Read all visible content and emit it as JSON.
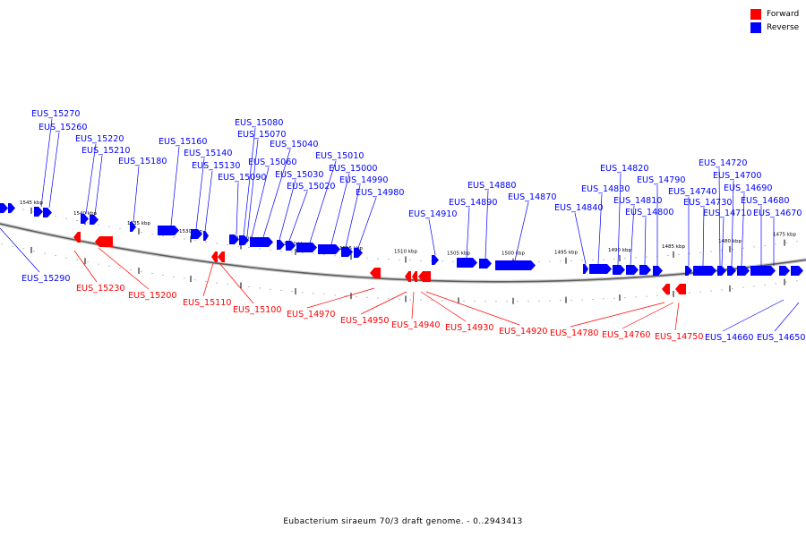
{
  "legend": {
    "forward_label": "Forward",
    "reverse_label": "Reverse",
    "forward_color": "#ff0000",
    "reverse_color": "#0000ff"
  },
  "caption": "Eubacterium siraeum 70/3 draft genome. - 0..2943413",
  "ticks": [
    "1545 kbp",
    "1540 kbp",
    "1535 kbp",
    "1530 kbp",
    "1525 kbp",
    "1520 kbp",
    "1515 kbp",
    "1510 kbp",
    "1505 kbp",
    "1500 kbp",
    "1495 kbp",
    "1490 kbp",
    "1485 kbp",
    "1480 kbp",
    "1475 kbp"
  ],
  "reverse_genes": [
    "EUS_15270",
    "EUS_15260",
    "EUS_15220",
    "EUS_15210",
    "EUS_15180",
    "EUS_15160",
    "EUS_15140",
    "EUS_15130",
    "EUS_15090",
    "EUS_15080",
    "EUS_15070",
    "EUS_15060",
    "EUS_15040",
    "EUS_15030",
    "EUS_15020",
    "EUS_15010",
    "EUS_15000",
    "EUS_14990",
    "EUS_14980",
    "EUS_14910",
    "EUS_14890",
    "EUS_14880",
    "EUS_14870",
    "EUS_14840",
    "EUS_14830",
    "EUS_14820",
    "EUS_14810",
    "EUS_14800",
    "EUS_14790",
    "EUS_14740",
    "EUS_14730",
    "EUS_14720",
    "EUS_14710",
    "EUS_14700",
    "EUS_14690",
    "EUS_14680",
    "EUS_14670",
    "EUS_15290",
    "EUS_14660",
    "EUS_14650"
  ],
  "forward_genes": [
    "EUS_15230",
    "EUS_15200",
    "EUS_15110",
    "EUS_15100",
    "EUS_14970",
    "EUS_14950",
    "EUS_14940",
    "EUS_14930",
    "EUS_14920",
    "EUS_14780",
    "EUS_14760",
    "EUS_14750"
  ]
}
